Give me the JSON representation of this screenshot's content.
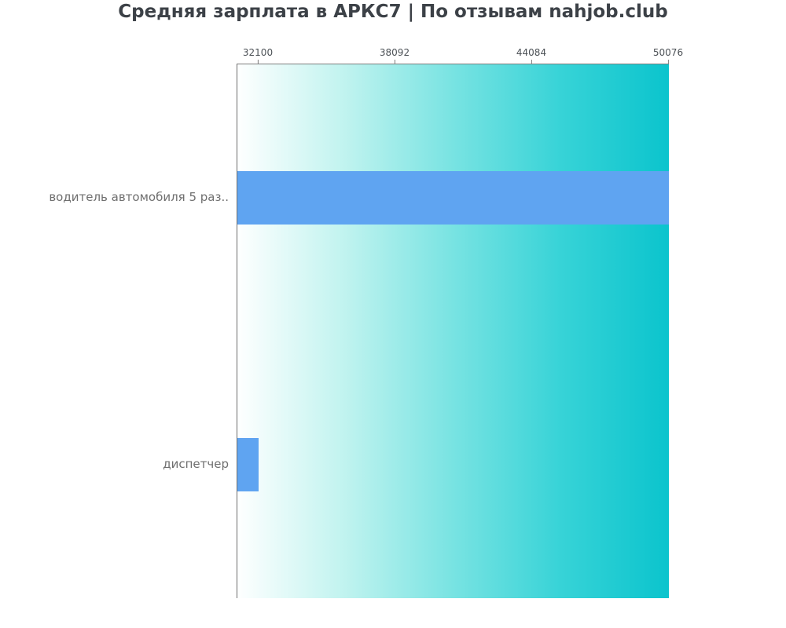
{
  "title": "Средняя зарплата в АРКС7 | По отзывам nahjob.club",
  "chart_data": {
    "type": "bar",
    "orientation": "horizontal",
    "title": "Средняя зарплата в АРКС7 | По отзывам nahjob.club",
    "categories": [
      "водитель автомобиля 5 раз..",
      "диспетчер"
    ],
    "values": [
      50076,
      32100
    ],
    "x_ticks": [
      32100,
      38092,
      44084,
      50076
    ],
    "xlim": [
      31170,
      50076
    ],
    "xlabel": "",
    "ylabel": "",
    "legend": "none",
    "grid": false,
    "axis_position": "top",
    "colors": {
      "bar": "#5fa4f1",
      "title_text": "#3c4147",
      "tick_text": "#4c5156",
      "category_text": "#6f6f6f",
      "axis_line": "#7d7d7d",
      "plot_gradient_stops": [
        "#feffff",
        "#c0f3ef",
        "#78e3e2",
        "#37d3d7",
        "#0bc4cd"
      ]
    }
  }
}
